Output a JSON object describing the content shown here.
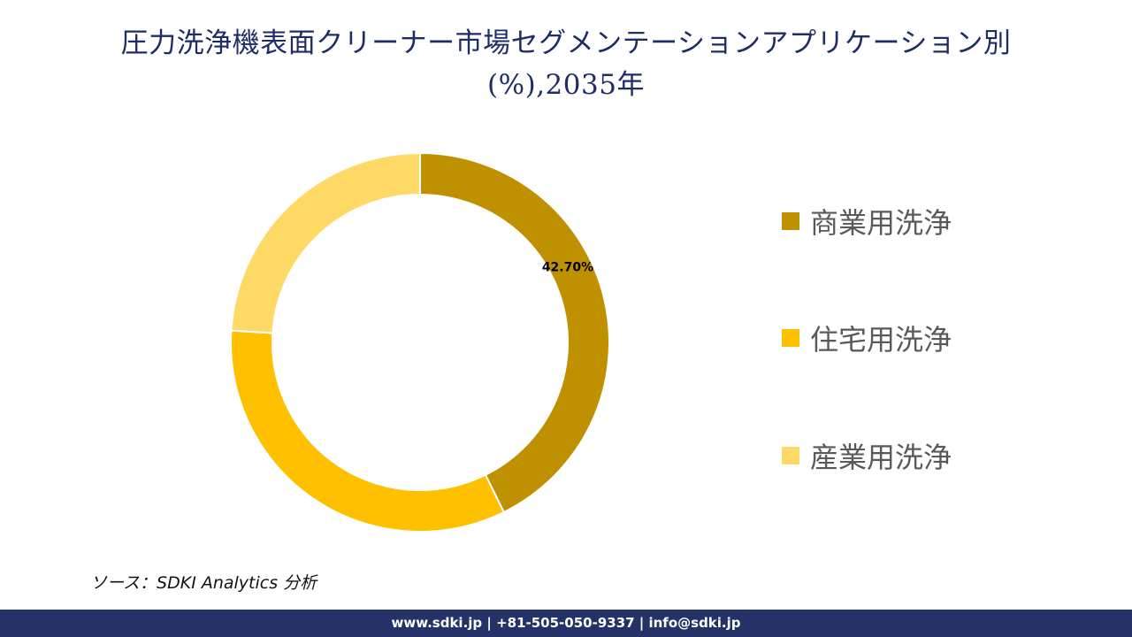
{
  "title": {
    "line1": "圧力洗浄機表面クリーナー市場セグメンテーションアプリケーション別",
    "line2": "(%),2035年"
  },
  "chart_data": {
    "type": "pie",
    "variant": "donut",
    "categories": [
      "商業用洗浄",
      "住宅用洗浄",
      "産業用洗浄"
    ],
    "values": [
      42.7,
      33.3,
      24.0
    ],
    "colors": [
      "#bf9000",
      "#ffc000",
      "#ffd966"
    ],
    "data_labels": [
      "42.70%",
      "",
      ""
    ],
    "legend_position": "right"
  },
  "source": "ソース：SDKI Analytics 分析",
  "footer": "www.sdki.jp | +81-505-050-9337 | info@sdki.jp"
}
